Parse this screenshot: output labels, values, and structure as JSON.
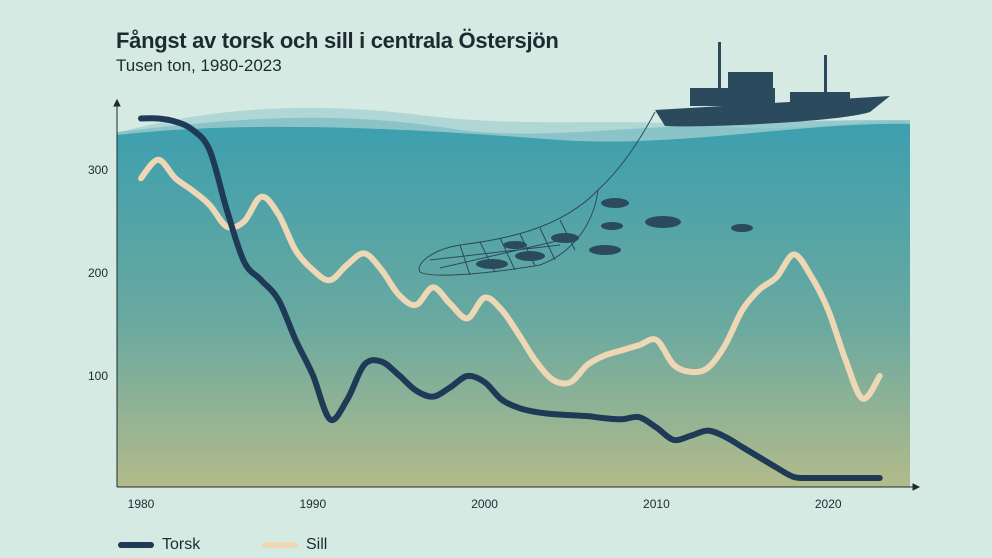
{
  "chart_data": {
    "type": "line",
    "title": "Fångst av torsk och sill i centrala Östersjön",
    "subtitle": "Tusen ton, 1980-2023",
    "xlabel": "",
    "ylabel": "",
    "xlim": [
      1979,
      2025
    ],
    "ylim": [
      0,
      360
    ],
    "x_ticks": [
      1980,
      1990,
      2000,
      2010,
      2020
    ],
    "y_ticks": [
      100,
      200,
      300
    ],
    "grid": false,
    "legend_position": "bottom-left",
    "x": [
      1980,
      1981,
      1982,
      1983,
      1984,
      1985,
      1986,
      1987,
      1988,
      1989,
      1990,
      1991,
      1992,
      1993,
      1994,
      1995,
      1996,
      1997,
      1998,
      1999,
      2000,
      2001,
      2002,
      2003,
      2004,
      2005,
      2006,
      2007,
      2008,
      2009,
      2010,
      2011,
      2012,
      2013,
      2014,
      2015,
      2016,
      2017,
      2018,
      2019,
      2020,
      2021,
      2022,
      2023
    ],
    "series": [
      {
        "name": "Torsk",
        "color": "#1e3a56",
        "values": [
          350,
          350,
          347,
          339,
          319,
          261,
          211,
          193,
          174,
          135,
          101,
          58,
          77,
          111,
          114,
          101,
          86,
          80,
          89,
          100,
          94,
          77,
          69,
          65,
          63,
          62,
          61,
          59,
          58,
          60,
          50,
          38,
          42,
          47,
          41,
          31,
          21,
          11,
          2,
          1,
          1,
          1,
          1,
          1
        ]
      },
      {
        "name": "Sill",
        "color": "#eed7b4",
        "values": [
          292,
          310,
          292,
          280,
          266,
          245,
          250,
          274,
          257,
          222,
          203,
          193,
          208,
          219,
          203,
          179,
          169,
          186,
          170,
          156,
          176,
          164,
          140,
          114,
          96,
          94,
          111,
          120,
          125,
          130,
          135,
          111,
          104,
          108,
          130,
          164,
          184,
          196,
          218,
          197,
          164,
          116,
          78,
          100
        ]
      }
    ]
  },
  "colors": {
    "background": "#d5eae3",
    "water_top": "#3d9fae",
    "water_bottom": "#b3bb8a",
    "boat": "#2b4a5e"
  },
  "icons": [
    "fishing-boat-illustration",
    "trawl-net-illustration",
    "fish-icon"
  ]
}
